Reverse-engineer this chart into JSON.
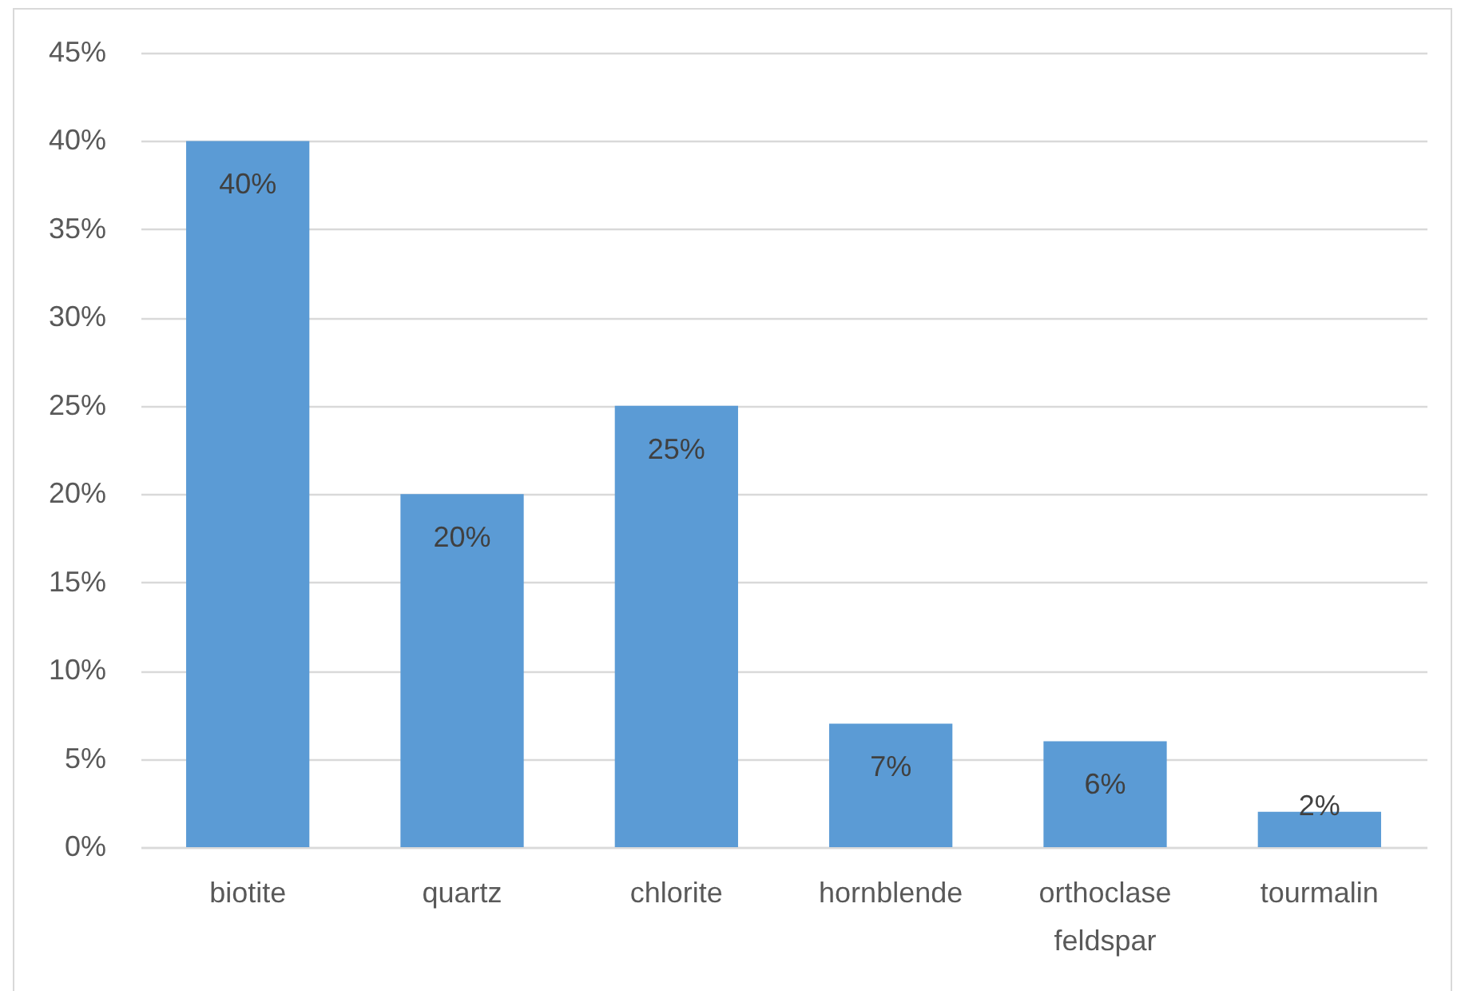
{
  "chart_data": {
    "type": "bar",
    "categories": [
      "biotite",
      "quartz",
      "chlorite",
      "hornblende",
      "orthoclase feldspar",
      "tourmalin"
    ],
    "values": [
      40,
      20,
      25,
      7,
      6,
      2
    ],
    "value_labels": [
      "40%",
      "20%",
      "25%",
      "7%",
      "6%",
      "2%"
    ],
    "color": "#5b9bd5",
    "ylim": [
      0,
      45
    ],
    "yticks": [
      {
        "value": 0,
        "label": "0%"
      },
      {
        "value": 5,
        "label": "5%"
      },
      {
        "value": 10,
        "label": "10%"
      },
      {
        "value": 15,
        "label": "15%"
      },
      {
        "value": 20,
        "label": "20%"
      },
      {
        "value": 25,
        "label": "25%"
      },
      {
        "value": 30,
        "label": "30%"
      },
      {
        "value": 35,
        "label": "35%"
      },
      {
        "value": 40,
        "label": "40%"
      },
      {
        "value": 45,
        "label": "45%"
      }
    ],
    "grid": "y"
  }
}
